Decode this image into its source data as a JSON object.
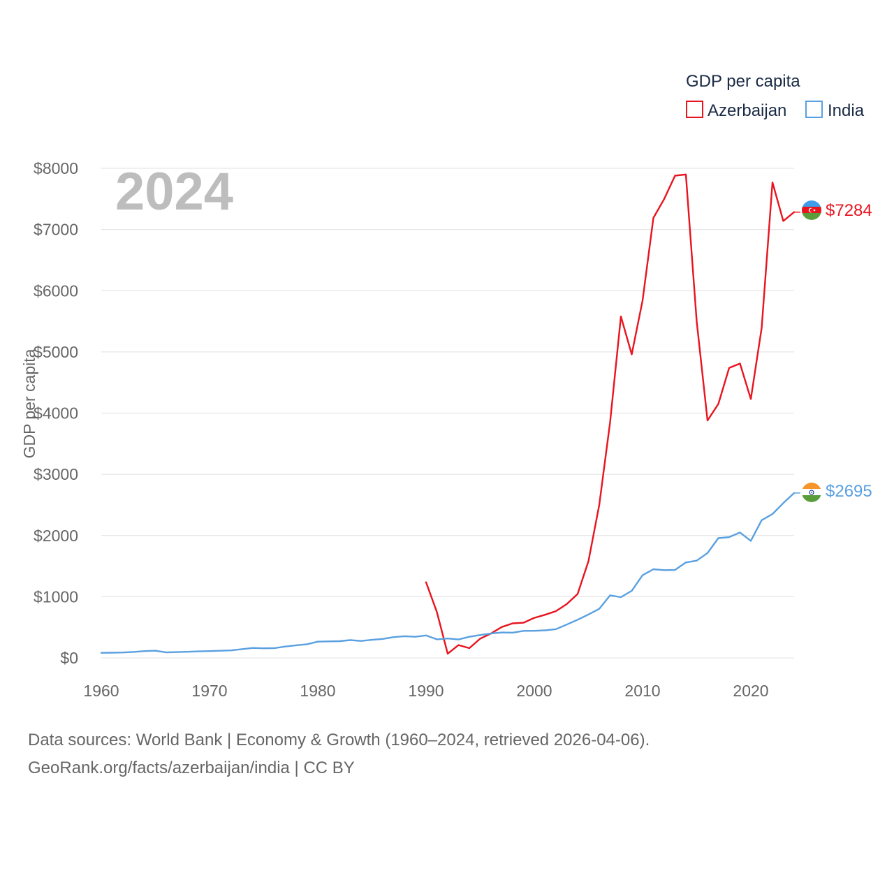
{
  "chart_data": {
    "type": "line",
    "year_label": "2024",
    "ylabel": "GDP per capita",
    "ylim": [
      0,
      8000
    ],
    "xlim": [
      1960,
      2024
    ],
    "y_ticks": [
      0,
      1000,
      2000,
      3000,
      4000,
      5000,
      6000,
      7000,
      8000
    ],
    "y_tick_labels": [
      "$0",
      "$1000",
      "$2000",
      "$3000",
      "$4000",
      "$5000",
      "$6000",
      "$7000",
      "$8000"
    ],
    "x_ticks": [
      1960,
      1970,
      1980,
      1990,
      2000,
      2010,
      2020
    ],
    "x_tick_labels": [
      "1960",
      "1970",
      "1980",
      "1990",
      "2000",
      "2010",
      "2020"
    ],
    "legend": {
      "title": "GDP per capita",
      "position": "top-right",
      "items": [
        "Azerbaijan",
        "India"
      ]
    },
    "series": [
      {
        "name": "Azerbaijan",
        "color": "#e8141e",
        "end_label": "$7284",
        "flag_icon": "azerbaijan-flag-icon",
        "x": [
          1990,
          1991,
          1992,
          1993,
          1994,
          1995,
          1996,
          1997,
          1998,
          1999,
          2000,
          2001,
          2002,
          2003,
          2004,
          2005,
          2006,
          2007,
          2008,
          2009,
          2010,
          2011,
          2012,
          2013,
          2014,
          2015,
          2016,
          2017,
          2018,
          2019,
          2020,
          2021,
          2022,
          2023,
          2024
        ],
        "values": [
          1237,
          750,
          70,
          210,
          160,
          315,
          400,
          505,
          565,
          575,
          655,
          705,
          765,
          880,
          1045,
          1580,
          2500,
          3850,
          5580,
          4960,
          5840,
          7190,
          7500,
          7880,
          7900,
          5500,
          3880,
          4150,
          4740,
          4810,
          4230,
          5390,
          7770,
          7140,
          7284
        ]
      },
      {
        "name": "India",
        "color": "#5aa0e0",
        "end_label": "$2695",
        "flag_icon": "india-flag-icon",
        "x": [
          1960,
          1961,
          1962,
          1963,
          1964,
          1965,
          1966,
          1967,
          1968,
          1969,
          1970,
          1971,
          1972,
          1973,
          1974,
          1975,
          1976,
          1977,
          1978,
          1979,
          1980,
          1981,
          1982,
          1983,
          1984,
          1985,
          1986,
          1987,
          1988,
          1989,
          1990,
          1991,
          1992,
          1993,
          1994,
          1995,
          1996,
          1997,
          1998,
          1999,
          2000,
          2001,
          2002,
          2003,
          2004,
          2005,
          2006,
          2007,
          2008,
          2009,
          2010,
          2011,
          2012,
          2013,
          2014,
          2015,
          2016,
          2017,
          2018,
          2019,
          2020,
          2021,
          2022,
          2023,
          2024
        ],
        "values": [
          83,
          86,
          89,
          98,
          112,
          118,
          90,
          96,
          100,
          107,
          112,
          118,
          123,
          144,
          163,
          158,
          161,
          186,
          206,
          224,
          266,
          271,
          274,
          291,
          277,
          296,
          310,
          340,
          355,
          346,
          368,
          303,
          317,
          301,
          346,
          374,
          400,
          415,
          413,
          442,
          443,
          451,
          470,
          546,
          624,
          710,
          802,
          1023,
          993,
          1097,
          1351,
          1449,
          1434,
          1438,
          1560,
          1590,
          1714,
          1957,
          1974,
          2050,
          1913,
          2250,
          2351,
          2530,
          2695
        ]
      }
    ]
  },
  "source": {
    "line1": "Data sources: World Bank | Economy & Growth (1960–2024, retrieved 2026-04-06).",
    "line2": "GeoRank.org/facts/azerbaijan/india | CC BY"
  }
}
